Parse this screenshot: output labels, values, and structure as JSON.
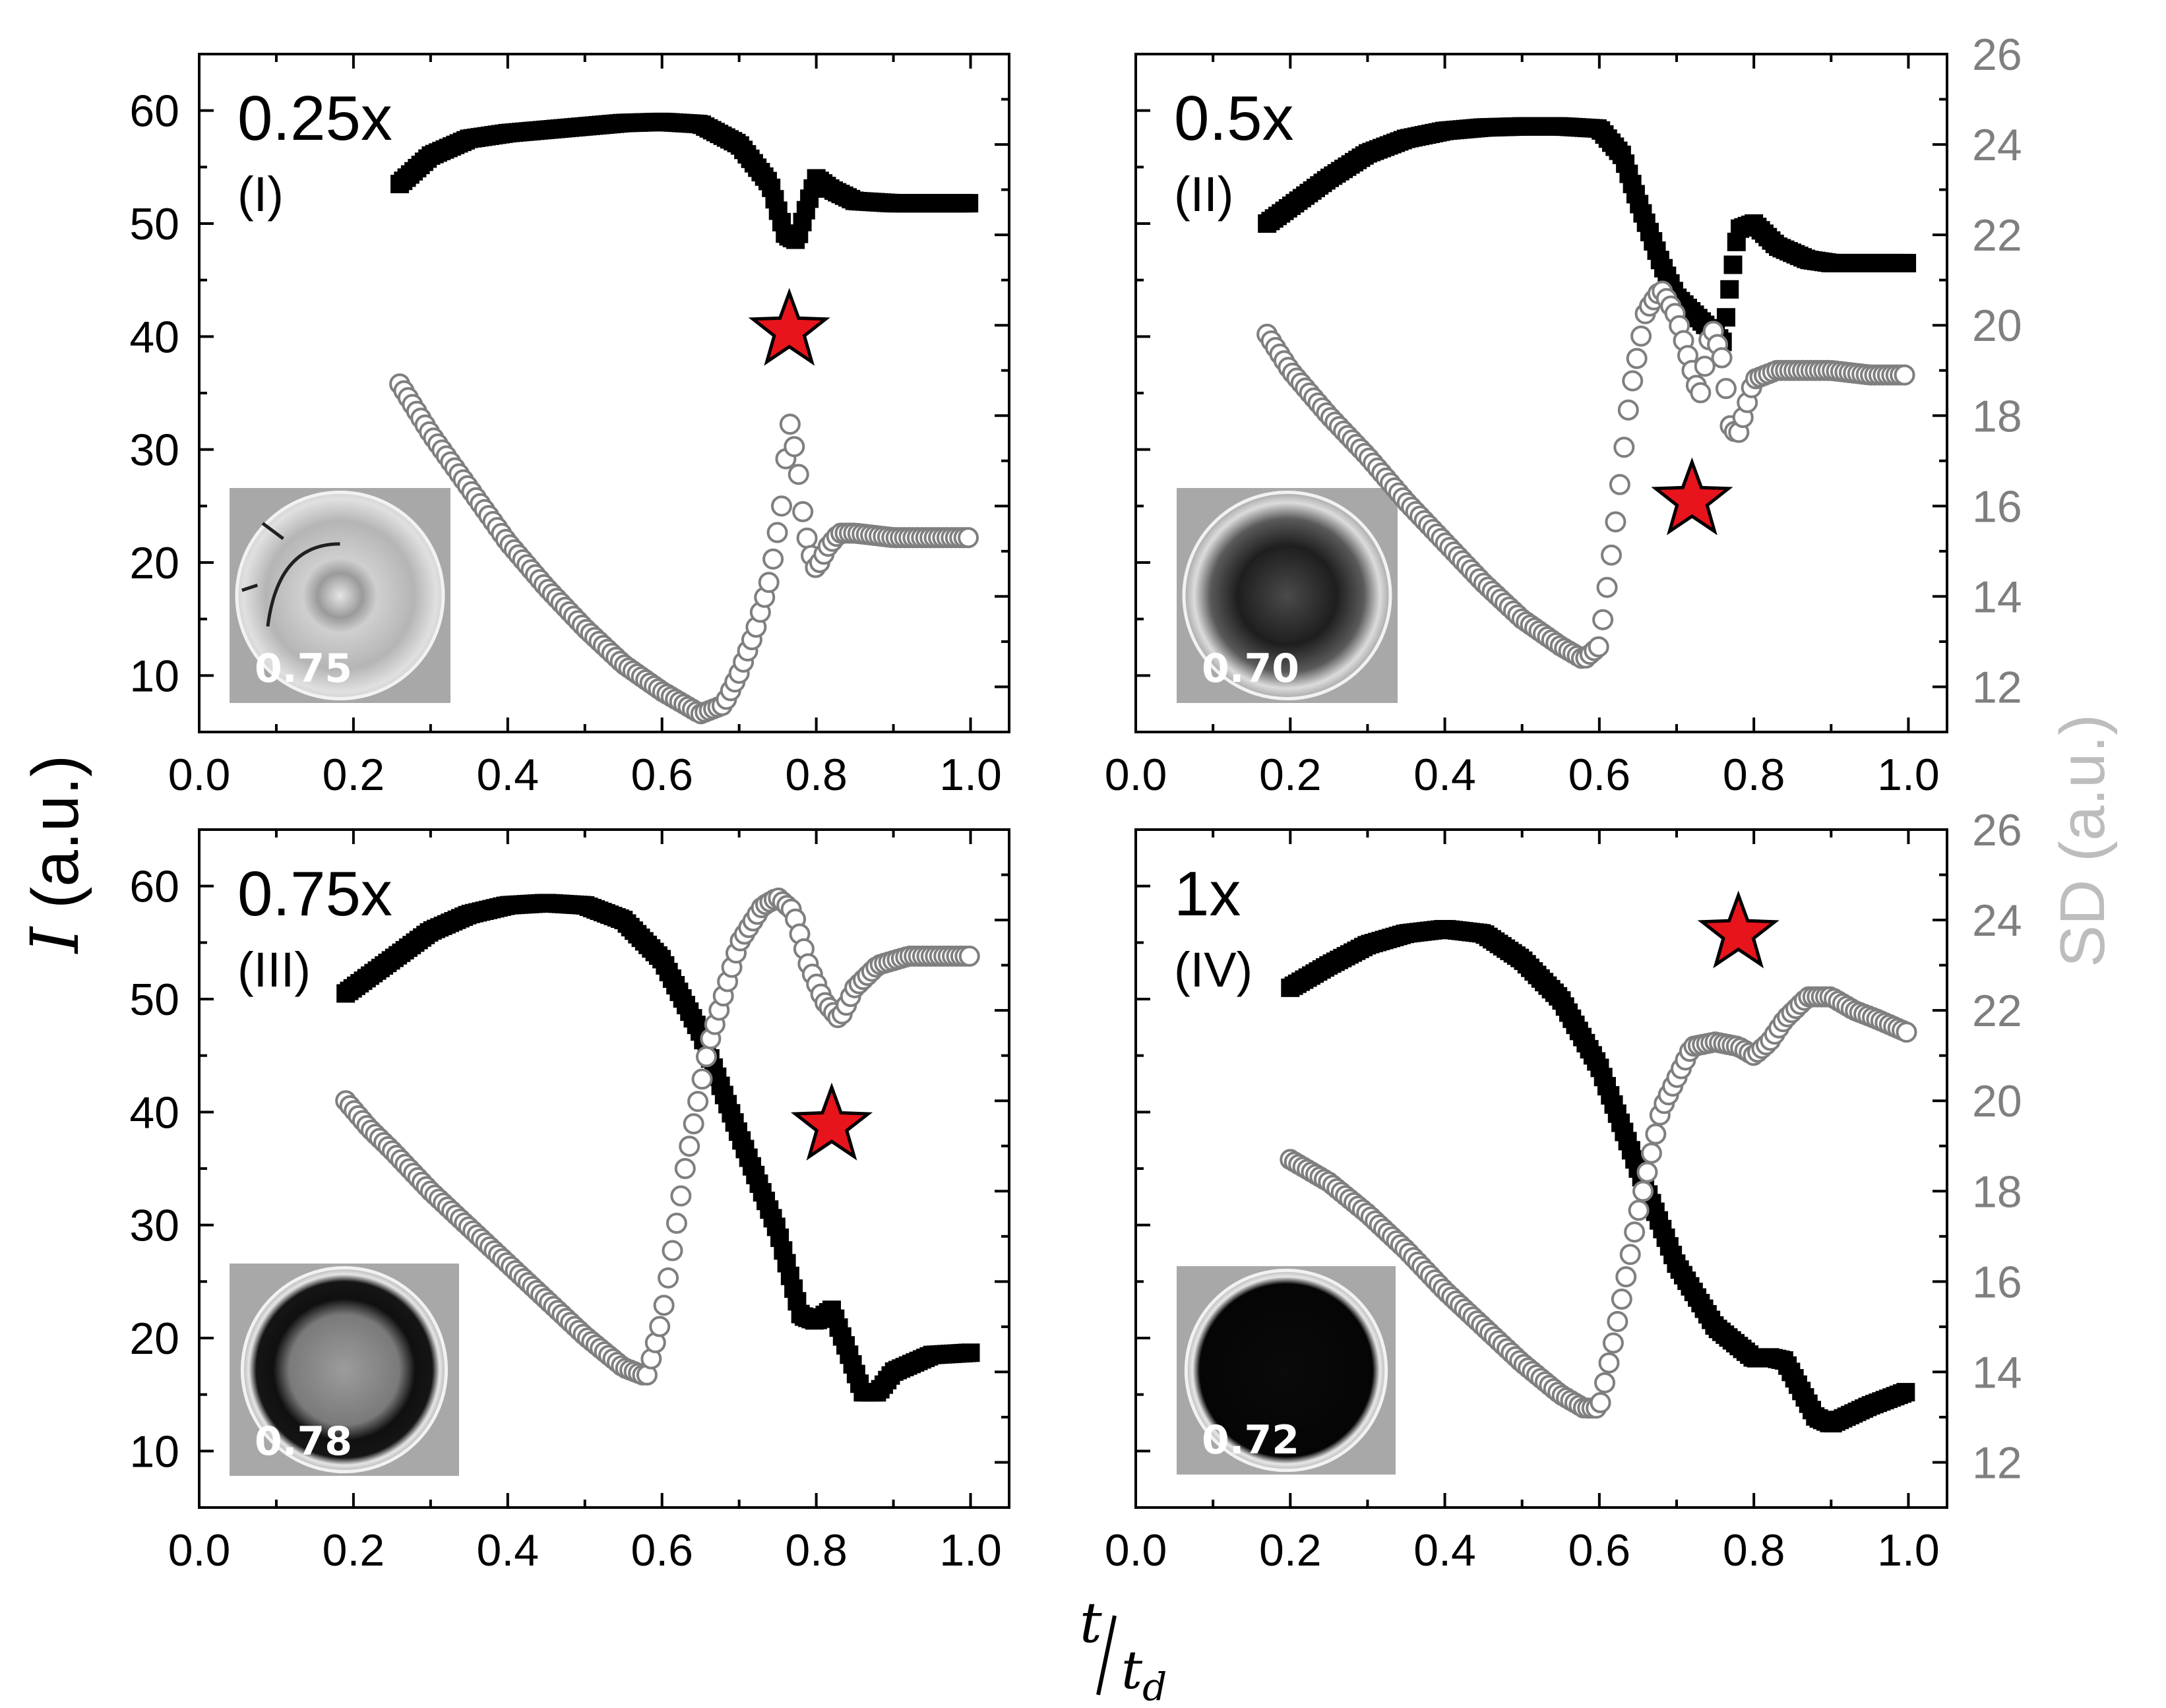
{
  "figure": {
    "ylabel_italic": "I",
    "ylabel_unit": " (a.u.)",
    "y2label": "SD (a.u.)",
    "xlabel_num": "t",
    "xlabel_den": "t",
    "xlabel_den_sub": "d"
  },
  "colors": {
    "intensity": "#000000",
    "sd": "#7f7f7f",
    "y2label": "#bdbdbd",
    "star": "#e8141b",
    "axis": "#000000",
    "right_ticks": "#7f7f7f"
  },
  "axes": {
    "xlim": [
      0.0,
      1.05
    ],
    "ylim": [
      5,
      65
    ],
    "y2lim": [
      11,
      26
    ],
    "xticks": [
      "0.0",
      "0.2",
      "0.4",
      "0.6",
      "0.8",
      "1.0"
    ],
    "yticks": [
      "10",
      "20",
      "30",
      "40",
      "50",
      "60"
    ],
    "y2ticks": [
      "12",
      "14",
      "16",
      "18",
      "20",
      "22",
      "24",
      "26"
    ]
  },
  "chart_data": [
    {
      "type": "scatter",
      "panel": "top-left",
      "label": "0.25x",
      "sublabel": "(I)",
      "inset_value": "0.75",
      "inset_style": "cracked",
      "star": {
        "x": 0.765,
        "y": 40.5
      },
      "intensity_I": {
        "x": [
          0.26,
          0.3,
          0.35,
          0.4,
          0.45,
          0.5,
          0.55,
          0.6,
          0.65,
          0.7,
          0.74,
          0.76,
          0.775,
          0.79,
          0.8,
          0.82,
          0.85,
          0.9,
          0.95,
          1.0
        ],
        "y": [
          53.5,
          56.0,
          57.5,
          58.0,
          58.3,
          58.6,
          58.9,
          59.0,
          58.8,
          57.0,
          53.5,
          49.0,
          48.5,
          52.0,
          54.0,
          53.0,
          52.0,
          51.8,
          51.8,
          51.8
        ]
      },
      "sd": {
        "x": [
          0.26,
          0.3,
          0.35,
          0.4,
          0.45,
          0.5,
          0.55,
          0.6,
          0.65,
          0.68,
          0.7,
          0.72,
          0.74,
          0.755,
          0.765,
          0.775,
          0.785,
          0.795,
          0.8,
          0.815,
          0.83,
          0.85,
          0.9,
          0.95,
          1.0
        ],
        "y": [
          18.7,
          17.6,
          16.4,
          15.2,
          14.2,
          13.3,
          12.5,
          11.9,
          11.4,
          11.6,
          12.3,
          13.2,
          14.4,
          16.0,
          17.9,
          17.0,
          15.5,
          14.8,
          14.6,
          15.1,
          15.4,
          15.4,
          15.3,
          15.3,
          15.3
        ]
      }
    },
    {
      "type": "scatter",
      "panel": "top-right",
      "label": "0.5x",
      "sublabel": "(II)",
      "inset_value": "0.70",
      "inset_style": "dark-center",
      "star": {
        "x": 0.72,
        "y": 25.5
      },
      "intensity_I": {
        "x": [
          0.17,
          0.2,
          0.25,
          0.3,
          0.35,
          0.4,
          0.45,
          0.5,
          0.55,
          0.6,
          0.63,
          0.65,
          0.68,
          0.7,
          0.73,
          0.76,
          0.77,
          0.78,
          0.8,
          0.83,
          0.87,
          0.9,
          0.95,
          1.0
        ],
        "y": [
          50.0,
          51.5,
          54.0,
          56.2,
          57.5,
          58.2,
          58.5,
          58.6,
          58.6,
          58.4,
          56.0,
          52.0,
          46.5,
          43.5,
          41.5,
          39.5,
          45.0,
          49.5,
          50.0,
          48.0,
          46.8,
          46.5,
          46.5,
          46.5
        ]
      },
      "sd": {
        "x": [
          0.17,
          0.2,
          0.25,
          0.3,
          0.35,
          0.4,
          0.45,
          0.5,
          0.55,
          0.58,
          0.6,
          0.62,
          0.64,
          0.66,
          0.68,
          0.7,
          0.72,
          0.73,
          0.745,
          0.76,
          0.77,
          0.78,
          0.8,
          0.83,
          0.87,
          0.9,
          0.95,
          1.0
        ],
        "y": [
          19.8,
          19.0,
          18.0,
          17.1,
          16.1,
          15.2,
          14.3,
          13.5,
          12.9,
          12.6,
          12.9,
          15.5,
          18.5,
          20.3,
          20.8,
          20.2,
          19.0,
          18.4,
          20.0,
          19.2,
          17.7,
          17.6,
          18.8,
          19.0,
          19.0,
          19.0,
          18.9,
          18.9
        ]
      }
    },
    {
      "type": "scatter",
      "panel": "bottom-left",
      "label": "0.75x",
      "sublabel": "(III)",
      "inset_value": "0.78",
      "inset_style": "dark-ring",
      "star": {
        "x": 0.82,
        "y": 38.8
      },
      "intensity_I": {
        "x": [
          0.19,
          0.25,
          0.3,
          0.35,
          0.4,
          0.45,
          0.5,
          0.55,
          0.6,
          0.65,
          0.7,
          0.75,
          0.78,
          0.8,
          0.82,
          0.84,
          0.86,
          0.88,
          0.9,
          0.95,
          1.0
        ],
        "y": [
          50.5,
          53.5,
          56.0,
          57.5,
          58.3,
          58.5,
          58.3,
          57.0,
          53.5,
          47.0,
          38.0,
          29.5,
          22.0,
          21.5,
          22.5,
          19.0,
          15.2,
          15.2,
          17.0,
          18.5,
          18.7
        ]
      },
      "sd": {
        "x": [
          0.19,
          0.22,
          0.25,
          0.3,
          0.35,
          0.4,
          0.45,
          0.5,
          0.55,
          0.58,
          0.6,
          0.63,
          0.66,
          0.7,
          0.73,
          0.75,
          0.77,
          0.79,
          0.81,
          0.83,
          0.85,
          0.88,
          0.92,
          0.96,
          1.0
        ],
        "y": [
          20.0,
          19.4,
          18.9,
          18.0,
          17.2,
          16.4,
          15.6,
          14.8,
          14.1,
          13.9,
          15.2,
          18.5,
          21.2,
          23.5,
          24.3,
          24.5,
          24.2,
          23.0,
          22.2,
          21.8,
          22.5,
          23.0,
          23.2,
          23.2,
          23.2
        ]
      }
    },
    {
      "type": "scatter",
      "panel": "bottom-right",
      "label": "1x",
      "sublabel": "(IV)",
      "inset_value": "0.72",
      "inset_style": "black",
      "star": {
        "x": 0.78,
        "y": 55.8
      },
      "intensity_I": {
        "x": [
          0.2,
          0.25,
          0.3,
          0.35,
          0.4,
          0.45,
          0.5,
          0.55,
          0.6,
          0.65,
          0.7,
          0.75,
          0.8,
          0.82,
          0.84,
          0.86,
          0.88,
          0.9,
          0.95,
          1.0
        ],
        "y": [
          51.0,
          53.0,
          54.8,
          55.8,
          56.2,
          55.8,
          53.5,
          50.0,
          44.0,
          35.0,
          26.5,
          21.0,
          18.2,
          18.3,
          18.0,
          15.5,
          13.0,
          12.4,
          14.0,
          15.3
        ]
      },
      "sd": {
        "x": [
          0.2,
          0.25,
          0.3,
          0.35,
          0.4,
          0.45,
          0.5,
          0.55,
          0.58,
          0.6,
          0.62,
          0.65,
          0.68,
          0.72,
          0.75,
          0.78,
          0.8,
          0.82,
          0.84,
          0.87,
          0.9,
          0.93,
          0.96,
          1.0
        ],
        "y": [
          18.7,
          18.2,
          17.5,
          16.7,
          15.8,
          15.0,
          14.2,
          13.5,
          13.2,
          13.2,
          14.8,
          17.5,
          19.8,
          21.2,
          21.3,
          21.2,
          21.0,
          21.3,
          21.8,
          22.3,
          22.3,
          22.0,
          21.8,
          21.5
        ]
      }
    }
  ]
}
